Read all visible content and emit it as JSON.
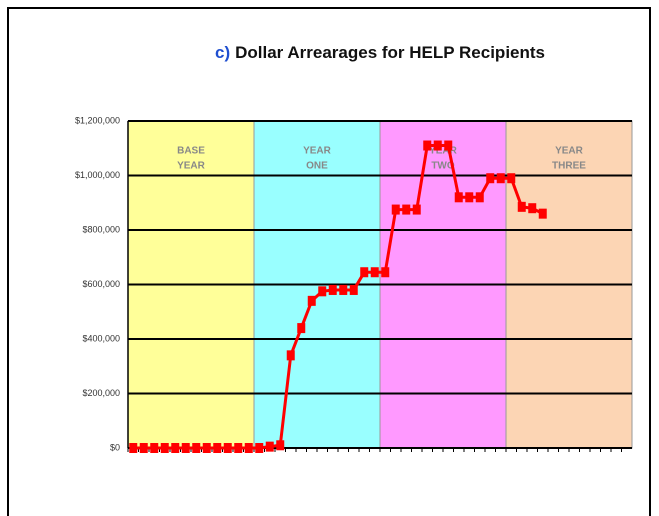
{
  "chart_data": {
    "type": "line",
    "title_prefix": "c)",
    "title": "Dollar Arrearages for HELP Recipients",
    "categories": [
      null,
      null,
      null,
      null,
      null,
      null,
      null,
      null,
      null,
      null,
      null,
      null,
      null,
      null,
      null,
      null,
      null,
      null,
      null,
      null,
      null,
      null,
      null,
      null,
      null,
      null,
      null,
      null,
      null,
      null,
      null,
      null,
      null,
      null,
      null,
      null,
      null,
      null,
      null,
      null,
      null,
      null,
      null,
      null,
      null,
      null,
      null,
      null
    ],
    "series": [
      {
        "name": null,
        "color": "#ff0000",
        "values": [
          0,
          0,
          0,
          0,
          0,
          0,
          0,
          0,
          0,
          0,
          0,
          0,
          0,
          5000,
          10000,
          340000,
          440000,
          540000,
          575000,
          580000,
          580000,
          580000,
          645000,
          645000,
          645000,
          875000,
          875000,
          875000,
          1110000,
          1110000,
          1110000,
          920000,
          920000,
          920000,
          990000,
          990000,
          990000,
          885000,
          880000,
          860000,
          null,
          null,
          null,
          null,
          null,
          null,
          null,
          null
        ]
      }
    ],
    "bands": [
      {
        "label": [
          "BASE",
          "YEAR"
        ],
        "color": "#ffff99"
      },
      {
        "label": [
          "YEAR",
          "ONE"
        ],
        "color": "#99ffff"
      },
      {
        "label": [
          "YEAR",
          "TWO"
        ],
        "color": "#ff99ff"
      },
      {
        "label": [
          "YEAR",
          "THREE"
        ],
        "color": "#fcd5b4"
      }
    ],
    "ylim": [
      0,
      1200000
    ],
    "yticks": [
      {
        "value": 0,
        "label": "$0"
      },
      {
        "value": 200000,
        "label": "$200,000"
      },
      {
        "value": 400000,
        "label": "$400,000"
      },
      {
        "value": 600000,
        "label": "$600,000"
      },
      {
        "value": 800000,
        "label": "$800,000"
      },
      {
        "value": 1000000,
        "label": "$1,000,000"
      },
      {
        "value": 1200000,
        "label": "$1,200,000"
      }
    ],
    "grid": true
  }
}
